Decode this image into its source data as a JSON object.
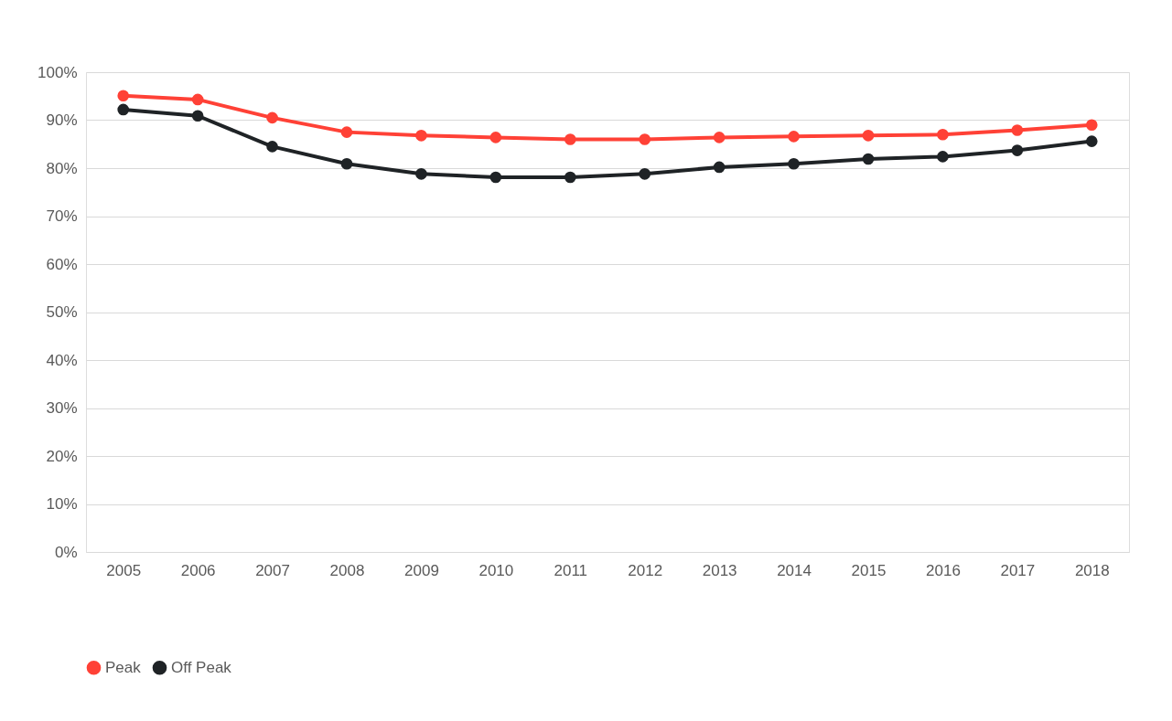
{
  "chart_data": {
    "type": "line",
    "categories": [
      "2005",
      "2006",
      "2007",
      "2008",
      "2009",
      "2010",
      "2011",
      "2012",
      "2013",
      "2014",
      "2015",
      "2016",
      "2017",
      "2018"
    ],
    "series": [
      {
        "name": "Peak",
        "color": "#ff4136",
        "values": [
          95.1,
          94.3,
          90.5,
          87.5,
          86.8,
          86.4,
          86.0,
          86.0,
          86.4,
          86.6,
          86.8,
          87.0,
          87.9,
          89.0
        ]
      },
      {
        "name": "Off Peak",
        "color": "#1f2326",
        "values": [
          92.2,
          90.9,
          84.5,
          80.9,
          78.8,
          78.1,
          78.1,
          78.8,
          80.2,
          80.9,
          81.9,
          82.4,
          83.7,
          85.6
        ]
      }
    ],
    "ylim": [
      0,
      100
    ],
    "yticks": [
      {
        "value": 0,
        "label": "0%"
      },
      {
        "value": 10,
        "label": "10%"
      },
      {
        "value": 20,
        "label": "20%"
      },
      {
        "value": 30,
        "label": "30%"
      },
      {
        "value": 40,
        "label": "40%"
      },
      {
        "value": 50,
        "label": "50%"
      },
      {
        "value": 60,
        "label": "60%"
      },
      {
        "value": 70,
        "label": "70%"
      },
      {
        "value": 80,
        "label": "80%"
      },
      {
        "value": 90,
        "label": "90%"
      },
      {
        "value": 100,
        "label": "100%"
      }
    ],
    "grid": "y",
    "legend": "bottom",
    "marker": "circle",
    "line_style": "solid"
  }
}
